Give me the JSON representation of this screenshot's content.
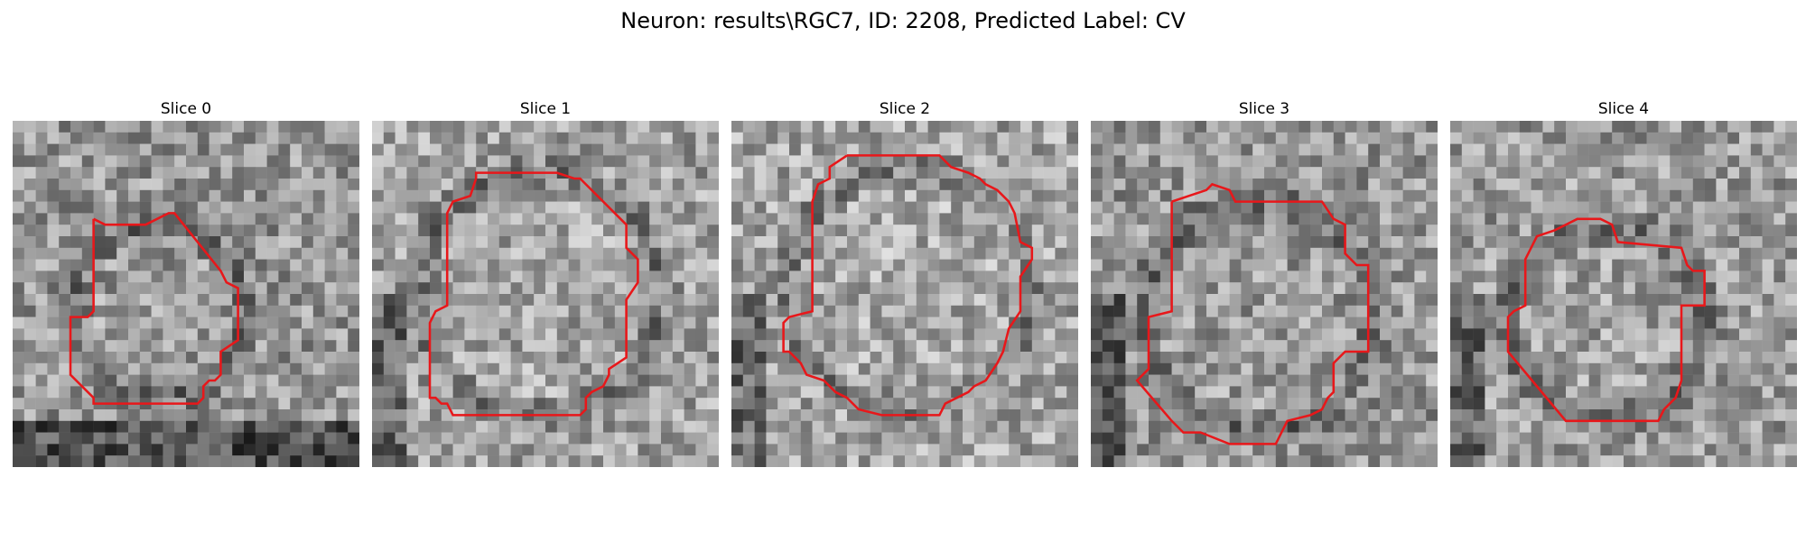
{
  "figure": {
    "title": "Neuron: results\\RGC7, ID: 2208, Predicted Label: CV"
  },
  "contour_color": "#e8171a",
  "slices": [
    {
      "title": "Slice 0"
    },
    {
      "title": "Slice 1"
    },
    {
      "title": "Slice 2"
    },
    {
      "title": "Slice 3"
    },
    {
      "title": "Slice 4"
    }
  ]
}
